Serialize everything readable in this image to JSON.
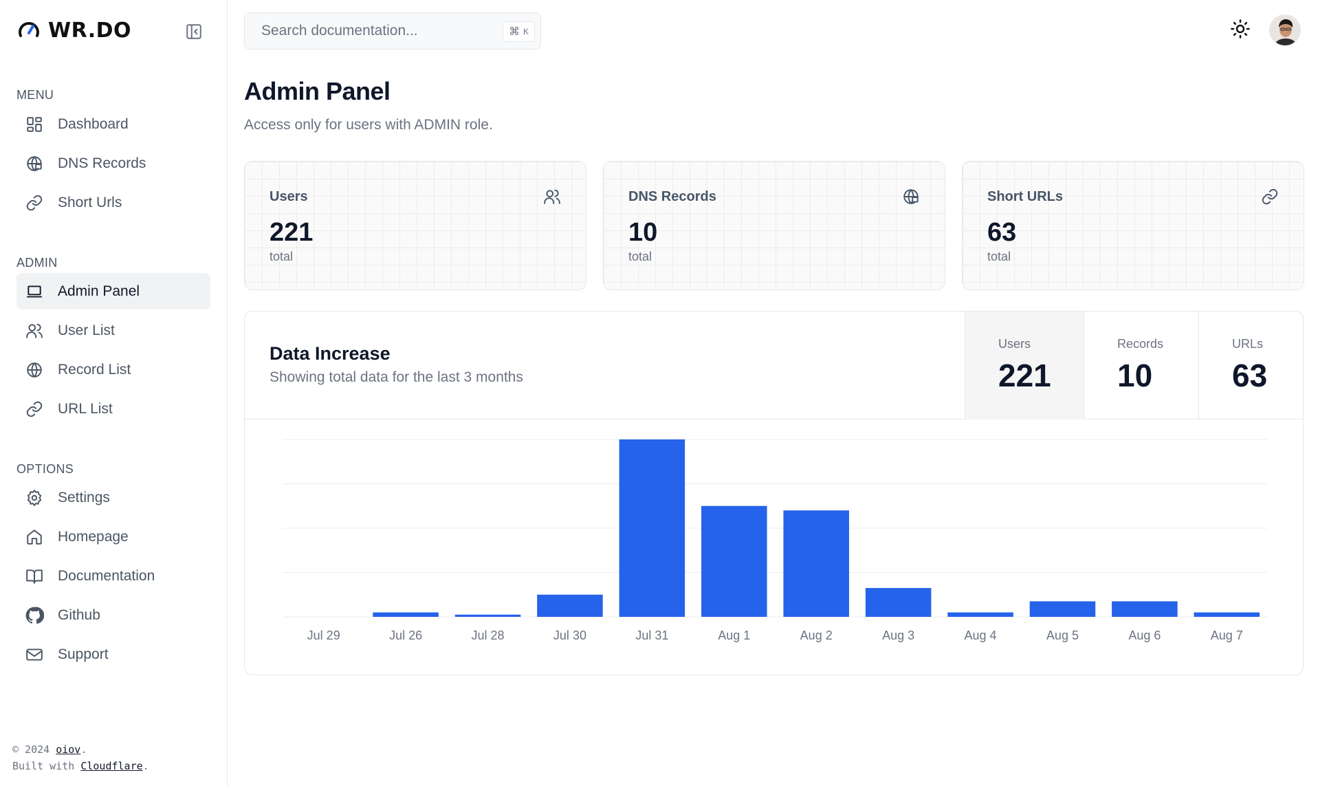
{
  "brand": {
    "name": "WR.DO"
  },
  "sidebar": {
    "sections": [
      {
        "title": "MENU",
        "items": [
          {
            "label": "Dashboard",
            "icon": "dashboard-icon"
          },
          {
            "label": "DNS Records",
            "icon": "globe-lock-icon"
          },
          {
            "label": "Short Urls",
            "icon": "link-icon"
          }
        ]
      },
      {
        "title": "ADMIN",
        "items": [
          {
            "label": "Admin Panel",
            "icon": "laptop-icon",
            "active": true
          },
          {
            "label": "User List",
            "icon": "users-icon"
          },
          {
            "label": "Record List",
            "icon": "globe-icon"
          },
          {
            "label": "URL List",
            "icon": "link-icon"
          }
        ]
      },
      {
        "title": "OPTIONS",
        "items": [
          {
            "label": "Settings",
            "icon": "gear-icon"
          },
          {
            "label": "Homepage",
            "icon": "home-icon"
          },
          {
            "label": "Documentation",
            "icon": "book-icon"
          },
          {
            "label": "Github",
            "icon": "github-icon"
          },
          {
            "label": "Support",
            "icon": "mail-icon"
          }
        ]
      }
    ]
  },
  "footer": {
    "line1_prefix": "© 2024 ",
    "line1_link": "oiov",
    "line1_suffix": ".",
    "line2_prefix": "Built with ",
    "line2_link": "Cloudflare",
    "line2_suffix": "."
  },
  "search": {
    "placeholder": "Search documentation...",
    "shortcut_symbol": "⌘",
    "shortcut_key": "K"
  },
  "page": {
    "title": "Admin Panel",
    "subtitle": "Access only for users with ADMIN role."
  },
  "cards": [
    {
      "label": "Users",
      "value": "221",
      "sub": "total",
      "icon": "users-icon"
    },
    {
      "label": "DNS Records",
      "value": "10",
      "sub": "total",
      "icon": "globe-lock-icon"
    },
    {
      "label": "Short URLs",
      "value": "63",
      "sub": "total",
      "icon": "link-icon"
    }
  ],
  "panel": {
    "title": "Data Increase",
    "subtitle": "Showing total data for the last 3 months",
    "metrics": [
      {
        "label": "Users",
        "value": "221",
        "active": true
      },
      {
        "label": "Records",
        "value": "10",
        "active": false
      },
      {
        "label": "URLs",
        "value": "63",
        "active": false
      }
    ]
  },
  "colors": {
    "bar": "#2563eb",
    "grid": "#eceef2",
    "axis_text": "#6b7280"
  },
  "chart_data": {
    "type": "bar",
    "categories": [
      "Jul 29",
      "Jul 26",
      "Jul 28",
      "Jul 30",
      "Jul 31",
      "Aug 1",
      "Aug 2",
      "Aug 3",
      "Aug 4",
      "Aug 5",
      "Aug 6",
      "Aug 7"
    ],
    "values": [
      0,
      1,
      0.5,
      5,
      40,
      25,
      24,
      6.5,
      1,
      3.5,
      3.5,
      1
    ],
    "ylim": [
      0,
      40
    ],
    "grid": true,
    "gridlines": 4
  }
}
